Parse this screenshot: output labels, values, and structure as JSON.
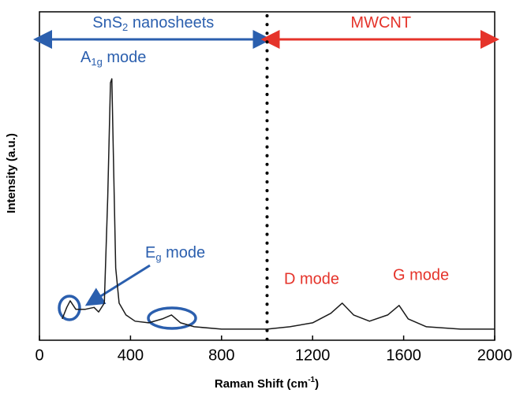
{
  "chart_data": {
    "type": "line",
    "x_label": {
      "text": "Raman Shift (cm",
      "sup": "-1",
      "end": ")"
    },
    "y_label": "Intensity (a.u.)",
    "xlim": [
      0,
      2000
    ],
    "xticks": [
      0,
      400,
      800,
      1200,
      1600,
      2000
    ],
    "ylim": [
      0,
      100
    ],
    "divider_x": 1000,
    "regions": [
      {
        "text": "SnS",
        "sub": "2",
        "rest": " nanosheets",
        "color": "#2b5fae",
        "from": 0,
        "to": 1000
      },
      {
        "text": "MWCNT",
        "color": "#e5332a",
        "from": 1000,
        "to": 2000
      }
    ],
    "annotations": [
      {
        "text": "A",
        "sub": "1g",
        "rest": " mode"
      },
      {
        "text": "E",
        "sub": "g",
        "rest": " mode"
      },
      {
        "text": "D mode"
      },
      {
        "text": "G mode"
      }
    ],
    "series": [
      {
        "color": "#1a1a1a",
        "x": [
          100,
          120,
          135,
          160,
          200,
          240,
          260,
          285,
          300,
          312,
          318,
          325,
          335,
          350,
          380,
          420,
          480,
          540,
          580,
          620,
          680,
          800,
          1000,
          1100,
          1200,
          1280,
          1330,
          1380,
          1450,
          1530,
          1580,
          1620,
          1700,
          1850,
          2000
        ],
        "values": [
          6.5,
          10,
          12,
          9.4,
          9.4,
          10,
          8.6,
          11.3,
          43.6,
          78.4,
          79.6,
          55.6,
          22,
          11.3,
          7.7,
          5.8,
          5.3,
          6.5,
          7.7,
          5.3,
          4.1,
          3.4,
          3.4,
          4.1,
          5.3,
          8.2,
          11.3,
          7.7,
          5.8,
          7.7,
          10.6,
          6.5,
          4.1,
          3.4,
          3.4
        ]
      }
    ]
  }
}
